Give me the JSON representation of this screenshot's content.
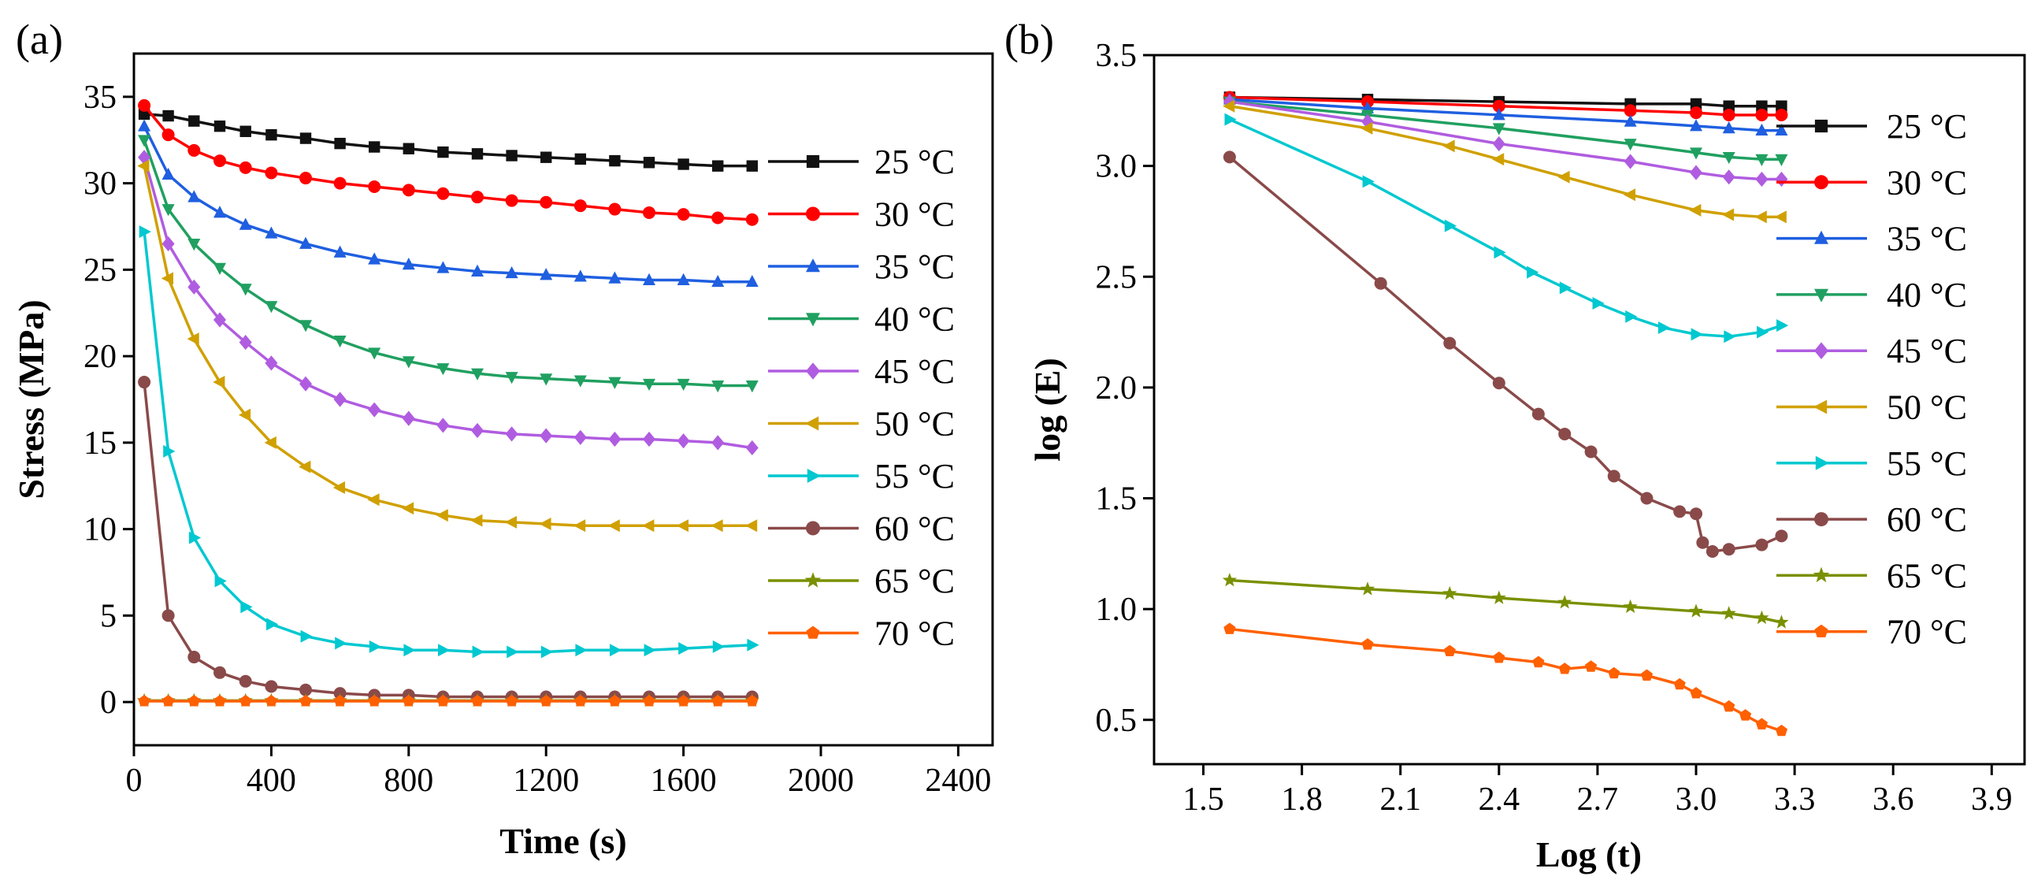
{
  "figure": {
    "panel_labels": [
      "(a)",
      "(b)"
    ]
  },
  "legend_labels": [
    "25 °C",
    "30 °C",
    "35 °C",
    "40 °C",
    "45 °C",
    "50 °C",
    "55 °C",
    "60 °C",
    "65 °C",
    "70 °C"
  ],
  "series_colors": [
    "#111111",
    "#ff0000",
    "#1f5fe0",
    "#20a060",
    "#b05ce0",
    "#d0a000",
    "#00c8d0",
    "#8a4a4a",
    "#7a9000",
    "#ff6000"
  ],
  "series_markers": [
    "square",
    "circle",
    "triangle-up",
    "triangle-down",
    "diamond",
    "triangle-left",
    "triangle-right",
    "circle",
    "star",
    "pentagon"
  ],
  "chart_data": [
    {
      "type": "line",
      "panel": "(a)",
      "title": "",
      "xlabel": "Time (s)",
      "ylabel": "Stress (MPa)",
      "xlim": [
        0,
        2500
      ],
      "ylim": [
        -2.5,
        37.5
      ],
      "xticks": [
        0,
        400,
        800,
        1200,
        1600,
        2000,
        2400
      ],
      "yticks": [
        0,
        5,
        10,
        15,
        20,
        25,
        30,
        35
      ],
      "x": [
        30,
        100,
        175,
        250,
        325,
        400,
        500,
        600,
        700,
        800,
        900,
        1000,
        1100,
        1200,
        1300,
        1400,
        1500,
        1600,
        1700,
        1800
      ],
      "series": [
        {
          "name": "25 °C",
          "values": [
            34.0,
            33.9,
            33.6,
            33.3,
            33.0,
            32.8,
            32.6,
            32.3,
            32.1,
            32.0,
            31.8,
            31.7,
            31.6,
            31.5,
            31.4,
            31.3,
            31.2,
            31.1,
            31.0,
            31.0
          ]
        },
        {
          "name": "30 °C",
          "values": [
            34.5,
            32.8,
            31.9,
            31.3,
            30.9,
            30.6,
            30.3,
            30.0,
            29.8,
            29.6,
            29.4,
            29.2,
            29.0,
            28.9,
            28.7,
            28.5,
            28.3,
            28.2,
            28.0,
            27.9
          ]
        },
        {
          "name": "35 °C",
          "values": [
            33.3,
            30.5,
            29.2,
            28.3,
            27.6,
            27.1,
            26.5,
            26.0,
            25.6,
            25.3,
            25.1,
            24.9,
            24.8,
            24.7,
            24.6,
            24.5,
            24.4,
            24.4,
            24.3,
            24.3
          ]
        },
        {
          "name": "40 °C",
          "values": [
            32.5,
            28.5,
            26.5,
            25.1,
            23.9,
            22.9,
            21.8,
            20.9,
            20.2,
            19.7,
            19.3,
            19.0,
            18.8,
            18.7,
            18.6,
            18.5,
            18.4,
            18.4,
            18.3,
            18.3
          ]
        },
        {
          "name": "45 °C",
          "values": [
            31.5,
            26.5,
            24.0,
            22.1,
            20.8,
            19.6,
            18.4,
            17.5,
            16.9,
            16.4,
            16.0,
            15.7,
            15.5,
            15.4,
            15.3,
            15.2,
            15.2,
            15.1,
            15.0,
            14.7
          ]
        },
        {
          "name": "50 °C",
          "values": [
            31.0,
            24.5,
            21.0,
            18.5,
            16.6,
            15.0,
            13.6,
            12.4,
            11.7,
            11.2,
            10.8,
            10.5,
            10.4,
            10.3,
            10.2,
            10.2,
            10.2,
            10.2,
            10.2,
            10.2
          ]
        },
        {
          "name": "55 °C",
          "values": [
            27.2,
            14.5,
            9.5,
            7.0,
            5.5,
            4.5,
            3.8,
            3.4,
            3.2,
            3.0,
            3.0,
            2.9,
            2.9,
            2.9,
            3.0,
            3.0,
            3.0,
            3.1,
            3.2,
            3.3
          ]
        },
        {
          "name": "60 °C",
          "values": [
            18.5,
            5.0,
            2.6,
            1.7,
            1.2,
            0.9,
            0.7,
            0.5,
            0.4,
            0.4,
            0.3,
            0.3,
            0.3,
            0.3,
            0.3,
            0.3,
            0.3,
            0.3,
            0.3,
            0.3
          ]
        },
        {
          "name": "65 °C",
          "values": [
            0.08,
            0.08,
            0.08,
            0.08,
            0.08,
            0.08,
            0.08,
            0.08,
            0.08,
            0.08,
            0.08,
            0.08,
            0.08,
            0.08,
            0.08,
            0.08,
            0.08,
            0.08,
            0.08,
            0.08
          ]
        },
        {
          "name": "70 °C",
          "values": [
            0.05,
            0.05,
            0.05,
            0.05,
            0.05,
            0.05,
            0.05,
            0.05,
            0.05,
            0.05,
            0.05,
            0.05,
            0.05,
            0.05,
            0.05,
            0.05,
            0.05,
            0.05,
            0.05,
            0.05
          ]
        }
      ],
      "grid": false,
      "legend": "right"
    },
    {
      "type": "line",
      "panel": "(b)",
      "title": "",
      "xlabel": "Log (t)",
      "ylabel": "log (E)",
      "xlim": [
        1.35,
        4.0
      ],
      "ylim": [
        0.3,
        3.5
      ],
      "xticks": [
        1.5,
        1.8,
        2.1,
        2.4,
        2.7,
        3.0,
        3.3,
        3.6,
        3.9
      ],
      "yticks": [
        0.5,
        1.0,
        1.5,
        2.0,
        2.5,
        3.0,
        3.5
      ],
      "series": [
        {
          "name": "25 °C",
          "x": [
            1.58,
            2.0,
            2.4,
            2.8,
            3.0,
            3.1,
            3.2,
            3.26
          ],
          "values": [
            3.31,
            3.3,
            3.29,
            3.28,
            3.28,
            3.27,
            3.27,
            3.27
          ]
        },
        {
          "name": "30 °C",
          "x": [
            1.58,
            2.0,
            2.4,
            2.8,
            3.0,
            3.1,
            3.2,
            3.26
          ],
          "values": [
            3.31,
            3.29,
            3.27,
            3.25,
            3.24,
            3.23,
            3.23,
            3.23
          ]
        },
        {
          "name": "35 °C",
          "x": [
            1.58,
            2.0,
            2.4,
            2.8,
            3.0,
            3.1,
            3.2,
            3.26
          ],
          "values": [
            3.3,
            3.26,
            3.23,
            3.2,
            3.18,
            3.17,
            3.16,
            3.16
          ]
        },
        {
          "name": "40 °C",
          "x": [
            1.58,
            2.0,
            2.4,
            2.8,
            3.0,
            3.1,
            3.2,
            3.26
          ],
          "values": [
            3.29,
            3.23,
            3.17,
            3.1,
            3.06,
            3.04,
            3.03,
            3.03
          ]
        },
        {
          "name": "45 °C",
          "x": [
            1.58,
            2.0,
            2.4,
            2.8,
            3.0,
            3.1,
            3.2,
            3.26
          ],
          "values": [
            3.29,
            3.2,
            3.1,
            3.02,
            2.97,
            2.95,
            2.94,
            2.94
          ]
        },
        {
          "name": "50 °C",
          "x": [
            1.58,
            2.0,
            2.25,
            2.4,
            2.6,
            2.8,
            3.0,
            3.1,
            3.2,
            3.26
          ],
          "values": [
            3.27,
            3.17,
            3.09,
            3.03,
            2.95,
            2.87,
            2.8,
            2.78,
            2.77,
            2.77
          ]
        },
        {
          "name": "55 °C",
          "x": [
            1.58,
            2.0,
            2.25,
            2.4,
            2.5,
            2.6,
            2.7,
            2.8,
            2.9,
            3.0,
            3.1,
            3.2,
            3.26
          ],
          "values": [
            3.21,
            2.93,
            2.73,
            2.61,
            2.52,
            2.45,
            2.38,
            2.32,
            2.27,
            2.24,
            2.23,
            2.25,
            2.28
          ]
        },
        {
          "name": "60 °C",
          "x": [
            1.58,
            2.04,
            2.25,
            2.4,
            2.52,
            2.6,
            2.68,
            2.75,
            2.85,
            2.95,
            3.0,
            3.02,
            3.05,
            3.1,
            3.2,
            3.26
          ],
          "values": [
            3.04,
            2.47,
            2.2,
            2.02,
            1.88,
            1.79,
            1.71,
            1.6,
            1.5,
            1.44,
            1.43,
            1.3,
            1.26,
            1.27,
            1.29,
            1.33
          ]
        },
        {
          "name": "65 °C",
          "x": [
            1.58,
            2.0,
            2.25,
            2.4,
            2.6,
            2.8,
            3.0,
            3.1,
            3.2,
            3.26
          ],
          "values": [
            1.13,
            1.09,
            1.07,
            1.05,
            1.03,
            1.01,
            0.99,
            0.98,
            0.96,
            0.94
          ]
        },
        {
          "name": "70 °C",
          "x": [
            1.58,
            2.0,
            2.25,
            2.4,
            2.52,
            2.6,
            2.68,
            2.75,
            2.85,
            2.95,
            3.0,
            3.1,
            3.15,
            3.2,
            3.26
          ],
          "values": [
            0.91,
            0.84,
            0.81,
            0.78,
            0.76,
            0.73,
            0.74,
            0.71,
            0.7,
            0.66,
            0.62,
            0.56,
            0.52,
            0.48,
            0.45
          ]
        }
      ],
      "grid": false,
      "legend": "right"
    }
  ]
}
